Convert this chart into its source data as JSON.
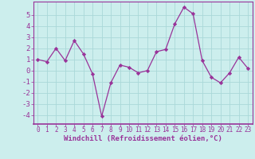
{
  "x": [
    0,
    1,
    2,
    3,
    4,
    5,
    6,
    7,
    8,
    9,
    10,
    11,
    12,
    13,
    14,
    15,
    16,
    17,
    18,
    19,
    20,
    21,
    22,
    23
  ],
  "y": [
    1.0,
    0.8,
    2.0,
    0.9,
    2.7,
    1.5,
    -0.3,
    -4.1,
    -1.1,
    0.5,
    0.3,
    -0.2,
    0.0,
    1.7,
    1.9,
    4.2,
    5.7,
    5.1,
    0.9,
    -0.6,
    -1.1,
    -0.2,
    1.2,
    0.2
  ],
  "line_color": "#993399",
  "marker": "D",
  "markersize": 2.2,
  "linewidth": 0.9,
  "xlabel": "Windchill (Refroidissement éolien,°C)",
  "xlabel_fontsize": 6.5,
  "bg_color": "#cceeed",
  "grid_color": "#aad8d8",
  "tick_color": "#993399",
  "label_color": "#993399",
  "ylim": [
    -4.8,
    6.2
  ],
  "yticks": [
    -4,
    -3,
    -2,
    -1,
    0,
    1,
    2,
    3,
    4,
    5
  ],
  "xlim": [
    -0.5,
    23.5
  ],
  "xticks": [
    0,
    1,
    2,
    3,
    4,
    5,
    6,
    7,
    8,
    9,
    10,
    11,
    12,
    13,
    14,
    15,
    16,
    17,
    18,
    19,
    20,
    21,
    22,
    23
  ],
  "ytick_fontsize": 6.5,
  "xtick_fontsize": 5.5
}
